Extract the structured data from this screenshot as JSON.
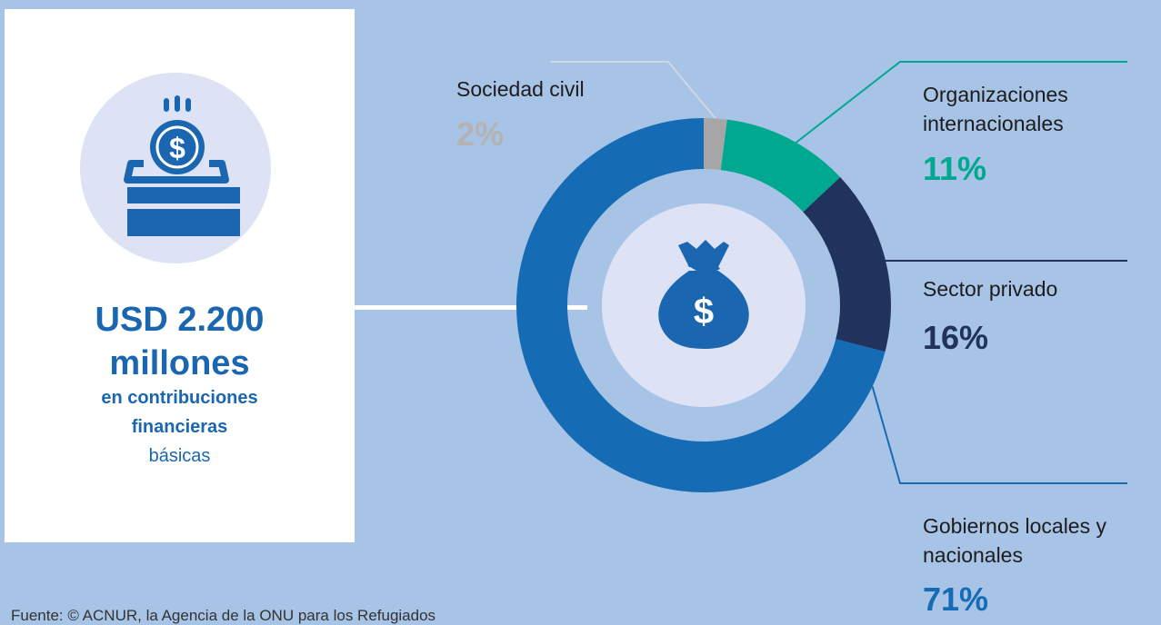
{
  "summary": {
    "amount_line1": "USD 2.200",
    "amount_line2": "millones",
    "desc_line1": "en contribuciones",
    "desc_line2": "financieras",
    "desc_line3": "básicas"
  },
  "source": "Fuente: © ACNUR, la Agencia de la ONU para los Refugiados",
  "icons": {
    "summary_icon": "donation-box-icon",
    "center_icon": "money-bag-icon"
  },
  "colors": {
    "background": "#a7c3e6",
    "accent": "#1a66b0",
    "inner_ring": "#a7c3e6",
    "inner_disc": "#dde3f5"
  },
  "chart_data": {
    "type": "pie",
    "donut": true,
    "slices": [
      {
        "label": "Sociedad civil",
        "percent_label": "2%",
        "value": 2,
        "color": "#a6a6a6",
        "pct_color": "#b3b3b3"
      },
      {
        "label": "Organizaciones internacionales",
        "percent_label": "11%",
        "value": 11,
        "color": "#00a88f",
        "pct_color": "#00a88f"
      },
      {
        "label": "Sector privado",
        "percent_label": "16%",
        "value": 16,
        "color": "#21335c",
        "pct_color": "#21335c"
      },
      {
        "label": "Gobiernos locales y nacionales",
        "percent_label": "71%",
        "value": 71,
        "color": "#156cb5",
        "pct_color": "#156cb5"
      }
    ]
  }
}
